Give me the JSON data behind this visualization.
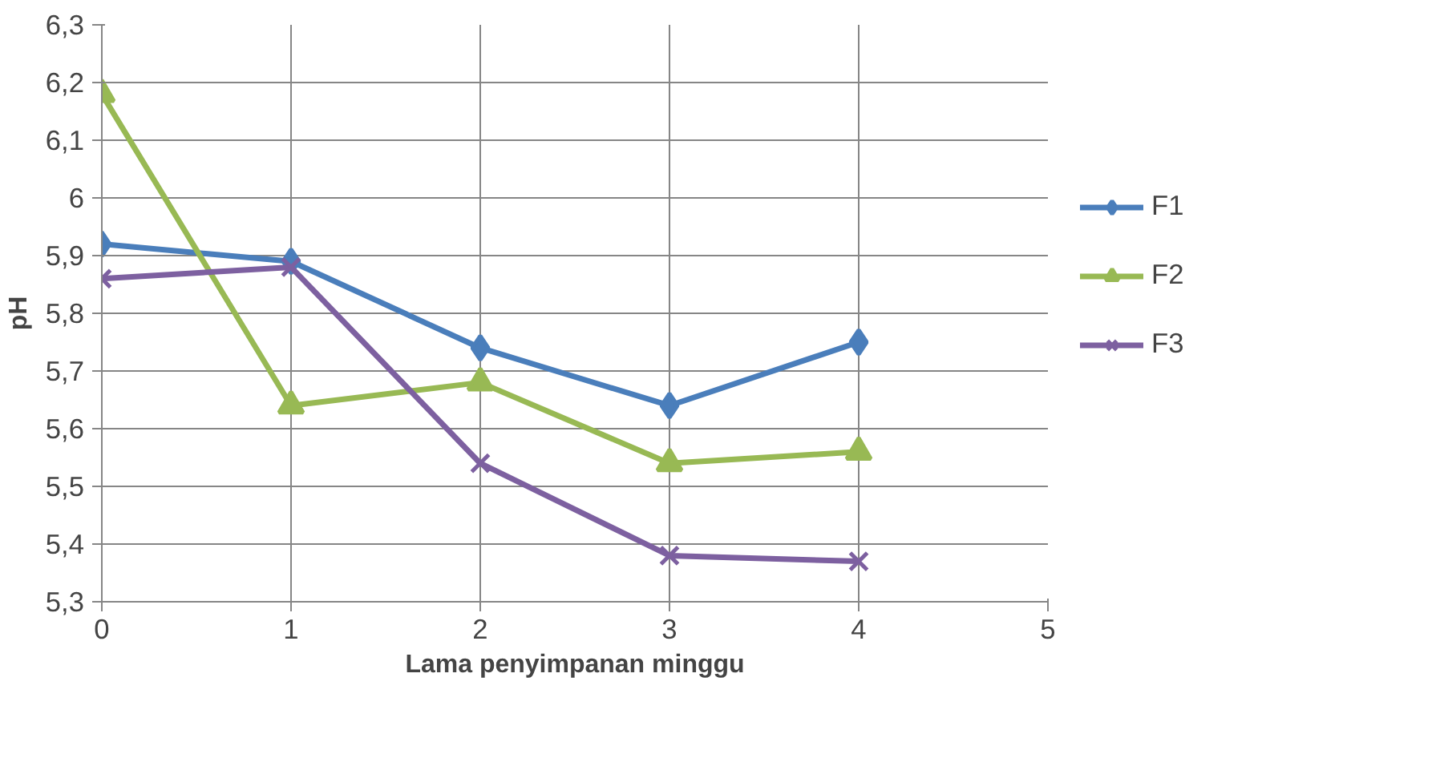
{
  "chart_data": {
    "type": "line",
    "xlabel": "Lama penyimpanan minggu",
    "ylabel": "pH",
    "x": [
      0,
      1,
      2,
      3,
      4
    ],
    "series": [
      {
        "name": "F1",
        "color": "#4a7ebb",
        "marker": "diamond",
        "values": [
          5.92,
          5.89,
          5.74,
          5.64,
          5.75
        ]
      },
      {
        "name": "F2",
        "color": "#98b954",
        "marker": "triangle",
        "values": [
          6.18,
          5.64,
          5.68,
          5.54,
          5.56
        ]
      },
      {
        "name": "F3",
        "color": "#7d60a0",
        "marker": "cross",
        "values": [
          5.86,
          5.88,
          5.54,
          5.38,
          5.37
        ]
      }
    ],
    "xlim": [
      0,
      5
    ],
    "xticks": [
      0,
      1,
      2,
      3,
      4,
      5
    ],
    "ylim": [
      5.3,
      6.3
    ],
    "yticks": [
      {
        "value": 5.3,
        "label": "5,3"
      },
      {
        "value": 5.4,
        "label": "5,4"
      },
      {
        "value": 5.5,
        "label": "5,5"
      },
      {
        "value": 5.6,
        "label": "5,6"
      },
      {
        "value": 5.7,
        "label": "5,7"
      },
      {
        "value": 5.8,
        "label": "5,8"
      },
      {
        "value": 5.9,
        "label": "5,9"
      },
      {
        "value": 6,
        "label": "6"
      },
      {
        "value": 6.1,
        "label": "6,1"
      },
      {
        "value": 6.2,
        "label": "6,2"
      },
      {
        "value": 6.3,
        "label": "6,3"
      }
    ],
    "grid": true,
    "legend": "right",
    "line_style": "solid"
  }
}
